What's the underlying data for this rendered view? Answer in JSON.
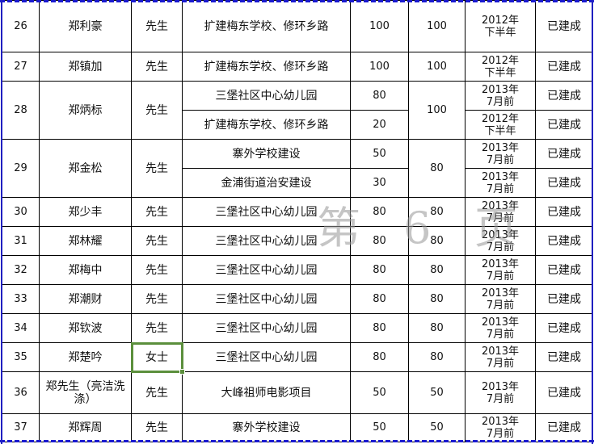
{
  "watermark": "第 6 页",
  "colors": {
    "page_break": "#1a1ad0",
    "selection": "#5b8f3c"
  },
  "selected_cell": "35-title",
  "rows": [
    {
      "no": "26",
      "name": "郑利豪",
      "title": "先生",
      "total": "100",
      "items": [
        {
          "project": "扩建梅东学校、修环乡路",
          "amount": "100",
          "time": "2012年\n下半年",
          "status": "已建成"
        }
      ]
    },
    {
      "no": "27",
      "name": "郑镇加",
      "title": "先生",
      "total": "100",
      "items": [
        {
          "project": "扩建梅东学校、修环乡路",
          "amount": "100",
          "time": "2012年\n下半年",
          "status": "已建成"
        }
      ]
    },
    {
      "no": "28",
      "name": "郑炳标",
      "title": "先生",
      "total": "100",
      "items": [
        {
          "project": "三堡社区中心幼儿园",
          "amount": "80",
          "time": "2013年\n7月前",
          "status": "已建成"
        },
        {
          "project": "扩建梅东学校、修环乡路",
          "amount": "20",
          "time": "2012年\n下半年",
          "status": "已建成"
        }
      ]
    },
    {
      "no": "29",
      "name": "郑金松",
      "title": "先生",
      "total": "80",
      "items": [
        {
          "project": "寨外学校建设",
          "amount": "50",
          "time": "2013年\n7月前",
          "status": "已建成"
        },
        {
          "project": "金浦街道治安建设",
          "amount": "30",
          "time": "2013年\n7月前",
          "status": "已建成"
        }
      ]
    },
    {
      "no": "30",
      "name": "郑少丰",
      "title": "先生",
      "total": "80",
      "items": [
        {
          "project": "三堡社区中心幼儿园",
          "amount": "80",
          "time": "2013年\n7月前",
          "status": "已建成"
        }
      ]
    },
    {
      "no": "31",
      "name": "郑林耀",
      "title": "先生",
      "total": "80",
      "items": [
        {
          "project": "三堡社区中心幼儿园",
          "amount": "80",
          "time": "2013年\n7月前",
          "status": "已建成"
        }
      ]
    },
    {
      "no": "32",
      "name": "郑梅中",
      "title": "先生",
      "total": "80",
      "items": [
        {
          "project": "三堡社区中心幼儿园",
          "amount": "80",
          "time": "2013年\n7月前",
          "status": "已建成"
        }
      ]
    },
    {
      "no": "33",
      "name": "郑潮财",
      "title": "先生",
      "total": "80",
      "items": [
        {
          "project": "三堡社区中心幼儿园",
          "amount": "80",
          "time": "2013年\n7月前",
          "status": "已建成"
        }
      ]
    },
    {
      "no": "34",
      "name": "郑钦波",
      "title": "先生",
      "total": "80",
      "items": [
        {
          "project": "三堡社区中心幼儿园",
          "amount": "80",
          "time": "2013年\n7月前",
          "status": "已建成"
        }
      ]
    },
    {
      "no": "35",
      "name": "郑楚吟",
      "title": "女士",
      "total": "80",
      "items": [
        {
          "project": "三堡社区中心幼儿园",
          "amount": "80",
          "time": "2013年\n7月前",
          "status": "已建成"
        }
      ]
    },
    {
      "no": "36",
      "name": "郑先生（亮洁洗涤）",
      "title": "先生",
      "total": "50",
      "items": [
        {
          "project": "大峰祖师电影项目",
          "amount": "50",
          "time": "2013年\n7月前",
          "status": "已建成"
        }
      ]
    },
    {
      "no": "37",
      "name": "郑辉周",
      "title": "先生",
      "total": "50",
      "items": [
        {
          "project": "寨外学校建设",
          "amount": "50",
          "time": "2013年\n7月前",
          "status": "已建成"
        }
      ]
    }
  ]
}
